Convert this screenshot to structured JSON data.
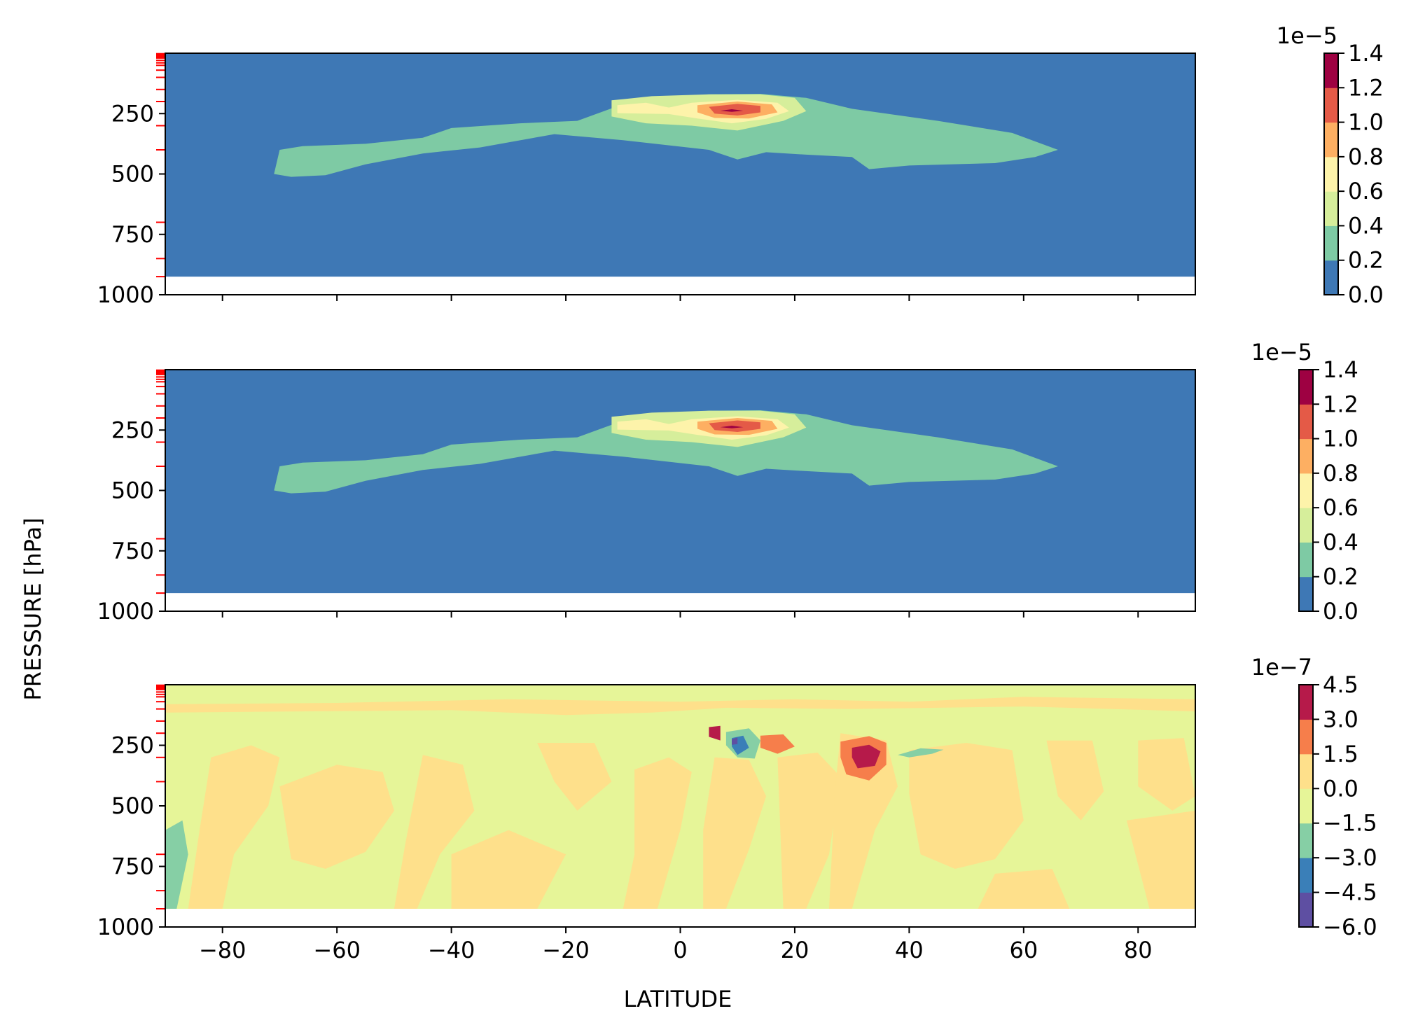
{
  "figure": {
    "xlabel": "LATITUDE",
    "ylabel": "PRESSURE [hPa]"
  },
  "chart_data": [
    {
      "type": "contour",
      "panel": "top",
      "x_ticks": [
        "−80",
        "−60",
        "−40",
        "−20",
        "0",
        "20",
        "40",
        "60",
        "80"
      ],
      "x_tick_values": [
        -80,
        -60,
        -40,
        -20,
        0,
        20,
        40,
        60,
        80
      ],
      "y_ticks": [
        "250",
        "500",
        "750",
        "1000"
      ],
      "y_tick_values": [
        250,
        500,
        750,
        1000
      ],
      "xlim": [
        -90,
        90
      ],
      "ylim": [
        1000,
        0
      ],
      "y_inverted": true,
      "colorbar": {
        "offset": "1e−5",
        "levels": [
          "0.0",
          "0.2",
          "0.4",
          "0.6",
          "0.8",
          "1.0",
          "1.2",
          "1.4"
        ],
        "level_values": [
          0.0,
          0.2,
          0.4,
          0.6,
          0.8,
          1.0,
          1.2,
          1.4
        ],
        "colors": [
          "#3e78b5",
          "#7ecaa4",
          "#d6ee9b",
          "#fdf3aa",
          "#fdaf62",
          "#e45a47",
          "#9e0142"
        ]
      }
    },
    {
      "type": "contour",
      "panel": "middle",
      "x_ticks": [
        "−80",
        "−60",
        "−40",
        "−20",
        "0",
        "20",
        "40",
        "60",
        "80"
      ],
      "x_tick_values": [
        -80,
        -60,
        -40,
        -20,
        0,
        20,
        40,
        60,
        80
      ],
      "y_ticks": [
        "250",
        "500",
        "750",
        "1000"
      ],
      "y_tick_values": [
        250,
        500,
        750,
        1000
      ],
      "xlim": [
        -90,
        90
      ],
      "ylim": [
        1000,
        0
      ],
      "y_inverted": true,
      "colorbar": {
        "offset": "1e−5",
        "levels": [
          "0.0",
          "0.2",
          "0.4",
          "0.6",
          "0.8",
          "1.0",
          "1.2",
          "1.4"
        ],
        "level_values": [
          0.0,
          0.2,
          0.4,
          0.6,
          0.8,
          1.0,
          1.2,
          1.4
        ],
        "colors": [
          "#3e78b5",
          "#7ecaa4",
          "#d6ee9b",
          "#fdf3aa",
          "#fdaf62",
          "#e45a47",
          "#9e0142"
        ]
      }
    },
    {
      "type": "contour",
      "panel": "bottom",
      "x_ticks": [
        "−80",
        "−60",
        "−40",
        "−20",
        "0",
        "20",
        "40",
        "60",
        "80"
      ],
      "x_tick_values": [
        -80,
        -60,
        -40,
        -20,
        0,
        20,
        40,
        60,
        80
      ],
      "y_ticks": [
        "250",
        "500",
        "750",
        "1000"
      ],
      "y_tick_values": [
        250,
        500,
        750,
        1000
      ],
      "xlim": [
        -90,
        90
      ],
      "ylim": [
        1000,
        0
      ],
      "y_inverted": true,
      "colorbar": {
        "offset": "1e−7",
        "levels": [
          "−6.0",
          "−4.5",
          "−3.0",
          "−1.5",
          "0.0",
          "1.5",
          "3.0",
          "4.5"
        ],
        "level_values": [
          -6.0,
          -4.5,
          -3.0,
          -1.5,
          0.0,
          1.5,
          3.0,
          4.5
        ],
        "colors": [
          "#5e4fa2",
          "#3a7fb8",
          "#86cfa5",
          "#e6f598",
          "#fee08b",
          "#f67e4b",
          "#b61a4a"
        ]
      }
    }
  ]
}
